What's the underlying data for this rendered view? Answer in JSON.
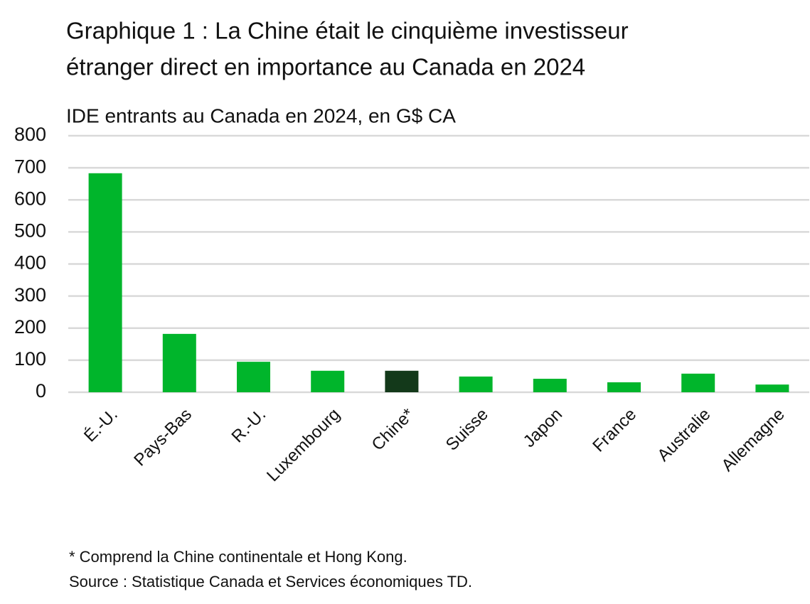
{
  "chart_data": {
    "type": "bar",
    "title": [
      "Graphique 1 : La Chine était le cinquième investisseur",
      "étranger direct en importance au Canada en 2024"
    ],
    "subtitle": "IDE entrants au Canada en 2024, en G$ CA",
    "categories": [
      "É.-U.",
      "Pays-Bas",
      "R.-U.",
      "Luxembourg",
      "Chine*",
      "Suisse",
      "Japon",
      "France",
      "Australie",
      "Allemagne"
    ],
    "values": [
      683,
      182,
      95,
      67,
      67,
      49,
      42,
      31,
      58,
      24
    ],
    "colors": [
      "#00b52b",
      "#00b52b",
      "#00b52b",
      "#00b52b",
      "#13391a",
      "#00b52b",
      "#00b52b",
      "#00b52b",
      "#00b52b",
      "#00b52b"
    ],
    "ylim": [
      0,
      800
    ],
    "yticks": [
      0,
      100,
      200,
      300,
      400,
      500,
      600,
      700,
      800
    ],
    "grid": true,
    "notes": [
      "* Comprend la Chine continentale et Hong Kong.",
      "Source : Statistique Canada et Services économiques TD."
    ]
  }
}
